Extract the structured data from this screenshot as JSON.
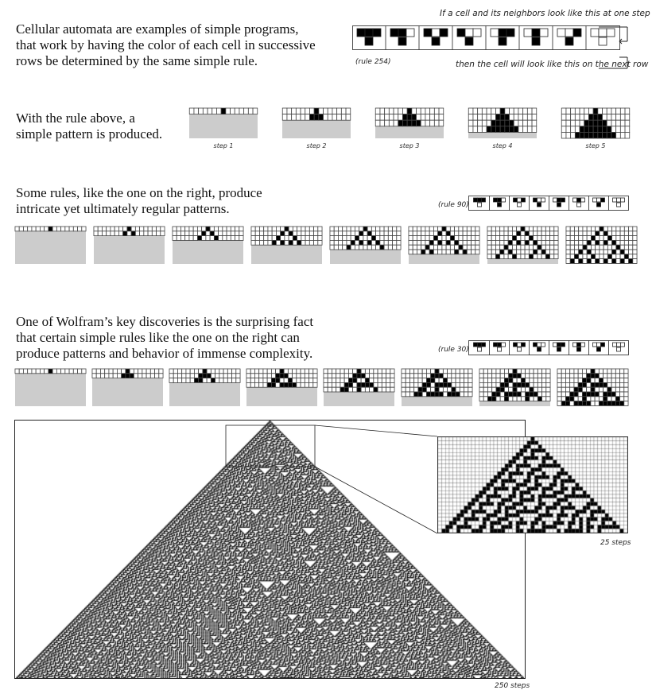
{
  "intro": {
    "lines": [
      "Cellular automata are examples of simple programs,",
      "that work by having the color of each cell in successive",
      "rows be determined by the same simple rule."
    ],
    "top_note": "If a cell and its neighbors look like this at one step",
    "bottom_note": "then the cell will look like this on the next row",
    "rule_label": "(rule 254)"
  },
  "section1": {
    "lines": [
      "With the rule above, a",
      "simple pattern is produced."
    ],
    "captions": [
      "step 1",
      "step 2",
      "step 3",
      "step 4",
      "step 5"
    ]
  },
  "section2": {
    "lines": [
      "Some rules, like the one on the right, produce",
      "intricate yet ultimately regular patterns."
    ],
    "rule_label": "(rule 90)"
  },
  "section3": {
    "lines": [
      "One of Wolfram’s key discoveries is the surprising fact",
      "that certain simple rules like the one on the right can",
      "produce patterns and behavior of immense complexity."
    ],
    "rule_label": "(rule 30)"
  },
  "big_plot": {
    "zoom_caption": "25 steps",
    "main_caption": "250 steps"
  },
  "rules": {
    "rule254": [
      1,
      1,
      1,
      1,
      1,
      1,
      1,
      0
    ],
    "rule90": [
      0,
      1,
      0,
      1,
      1,
      0,
      1,
      0
    ],
    "rule30": [
      0,
      0,
      0,
      1,
      1,
      1,
      1,
      0
    ]
  },
  "colors": {
    "cell_on": "#000000",
    "cell_off": "#ffffff",
    "fill_grey": "#cccccc",
    "grid": "#444444"
  }
}
